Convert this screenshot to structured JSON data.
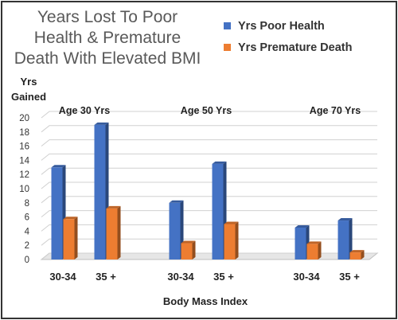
{
  "chart_data": {
    "type": "bar",
    "title_lines": [
      "Years Lost To Poor",
      "Health & Premature",
      "Death With Elevated BMI"
    ],
    "ylabel_lines": [
      "Yrs",
      "Gained"
    ],
    "xlabel": "Body Mass Index",
    "ylim": [
      0,
      20
    ],
    "yticks": [
      0,
      2,
      4,
      6,
      8,
      10,
      12,
      14,
      16,
      18,
      20
    ],
    "grid": true,
    "legend_position": "top-right",
    "groups": [
      {
        "label": "Age 30 Yrs",
        "categories": [
          "30-34",
          "35 +"
        ]
      },
      {
        "label": "Age 50 Yrs",
        "categories": [
          "30-34",
          "35 +"
        ]
      },
      {
        "label": "Age 70 Yrs",
        "categories": [
          "30-34",
          "35 +"
        ]
      }
    ],
    "series": [
      {
        "name": "Yrs Poor Health",
        "color": "#4472C4",
        "values": [
          13,
          19,
          8,
          13.5,
          4.5,
          5.5
        ]
      },
      {
        "name": "Yrs Premature Death",
        "color": "#ED7D31",
        "values": [
          5.7,
          7.2,
          2.3,
          5,
          2.2,
          1
        ]
      }
    ]
  }
}
